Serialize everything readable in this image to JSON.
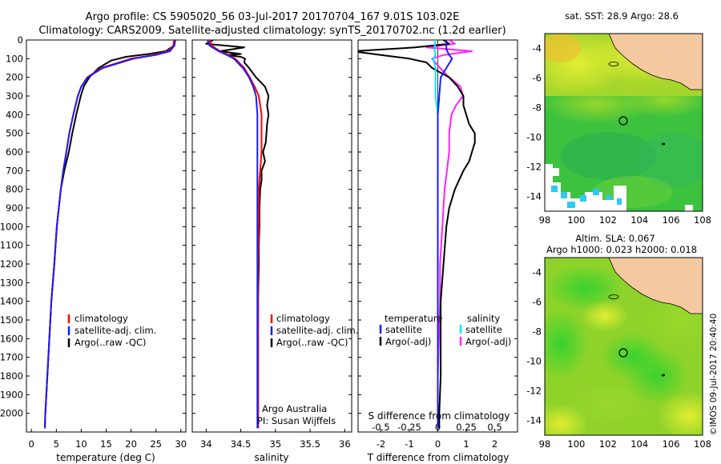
{
  "header": {
    "line1": "Argo profile: CS 5905020_56 03-Jul-2017 20170704_167 9.01S 103.02E",
    "line2": "Climatology: CARS2009. Satellite-adjusted climatology: synTS_20170702.nc (1.2d earlier)"
  },
  "colors": {
    "climatology": "#ff0000",
    "satellite": "#1a1aff",
    "argo": "#000000",
    "salinity_satellite": "#00e5ff",
    "salinity_argo": "#ff22ff",
    "land": "#f5c9a0"
  },
  "chart_data": [
    {
      "type": "line",
      "panel": "temperature",
      "xlabel": "temperature (deg C)",
      "xlim": [
        -1,
        31
      ],
      "ylim": [
        2100,
        0
      ],
      "xticks": [
        "0",
        "5",
        "10",
        "15",
        "20",
        "25",
        "30"
      ],
      "yticks": [
        "0",
        "100",
        "200",
        "300",
        "400",
        "500",
        "600",
        "700",
        "800",
        "900",
        "1000",
        "1100",
        "1200",
        "1300",
        "1400",
        "1500",
        "1600",
        "1700",
        "1800",
        "1900",
        "2000"
      ],
      "legend": [
        "climatology",
        "satellite-adj. clim.",
        "Argo(..raw -QC)"
      ],
      "series": [
        {
          "name": "climatology",
          "depth": [
            0,
            30,
            60,
            80,
            100,
            150,
            200,
            250,
            300,
            400,
            500,
            600,
            700,
            800,
            900,
            1000,
            1200,
            1400,
            1600,
            1800,
            2000,
            2080
          ],
          "values": [
            28.6,
            28.5,
            27.5,
            24.5,
            20.0,
            14.0,
            11.2,
            10.0,
            9.3,
            8.4,
            7.6,
            7.0,
            6.4,
            5.9,
            5.5,
            5.1,
            4.6,
            4.0,
            3.6,
            3.2,
            2.8,
            2.7
          ]
        },
        {
          "name": "satellite-adj. clim.",
          "depth": [
            0,
            30,
            60,
            80,
            100,
            150,
            200,
            250,
            300,
            400,
            500,
            600,
            700,
            800,
            900,
            1000,
            1200,
            1400,
            1600,
            1800,
            2000,
            2080
          ],
          "values": [
            28.9,
            28.7,
            27.8,
            25.0,
            20.5,
            14.3,
            11.3,
            10.0,
            9.3,
            8.4,
            7.6,
            7.0,
            6.4,
            5.9,
            5.5,
            5.1,
            4.6,
            4.0,
            3.6,
            3.2,
            2.8,
            2.7
          ]
        },
        {
          "name": "Argo(..raw -QC)",
          "depth": [
            0,
            30,
            60,
            75,
            90,
            110,
            150,
            200,
            250,
            300,
            400,
            500,
            600,
            700,
            800,
            900,
            1000,
            1200,
            1400,
            1600,
            1800,
            2000,
            2080
          ],
          "values": [
            28.7,
            28.6,
            27.0,
            23.5,
            19.0,
            16.0,
            13.5,
            11.6,
            10.5,
            9.9,
            9.0,
            8.2,
            7.5,
            6.6,
            5.9,
            5.5,
            5.1,
            4.6,
            4.0,
            3.6,
            3.2,
            2.8,
            2.7
          ]
        }
      ]
    },
    {
      "type": "line",
      "panel": "salinity",
      "xlabel": "salinity",
      "xlim": [
        33.8,
        36.1
      ],
      "ylim": [
        2100,
        0
      ],
      "xticks": [
        "34",
        "34.5",
        "35",
        "35.5",
        "36"
      ],
      "legend": [
        "climatology",
        "satellite-adj. clim.",
        "Argo(..raw -QC)"
      ],
      "annotation": [
        "Argo Australia",
        "PI: Susan Wijffels"
      ],
      "series": [
        {
          "name": "climatology",
          "depth": [
            0,
            30,
            60,
            80,
            100,
            150,
            200,
            250,
            300,
            400,
            500,
            600,
            800,
            1000,
            1200,
            1400,
            1600,
            1800,
            2000,
            2080
          ],
          "values": [
            34.05,
            34.08,
            34.2,
            34.32,
            34.42,
            34.55,
            34.63,
            34.7,
            34.76,
            34.8,
            34.8,
            34.8,
            34.76,
            34.76,
            34.75,
            34.75,
            34.75,
            34.75,
            34.75,
            34.75
          ]
        },
        {
          "name": "satellite-adj. clim.",
          "depth": [
            0,
            30,
            60,
            80,
            100,
            150,
            200,
            250,
            300,
            400,
            500,
            600,
            800,
            1000,
            1200,
            1400,
            1600,
            1800,
            2000,
            2080
          ],
          "values": [
            34.02,
            34.05,
            34.18,
            34.3,
            34.4,
            34.53,
            34.62,
            34.68,
            34.72,
            34.74,
            34.74,
            34.74,
            34.74,
            34.74,
            34.74,
            34.74,
            34.74,
            34.74,
            34.74,
            34.74
          ]
        },
        {
          "name": "Argo(..raw -QC)",
          "depth": [
            0,
            20,
            40,
            60,
            75,
            80,
            90,
            100,
            120,
            150,
            200,
            250,
            300,
            350,
            400,
            450,
            500,
            550,
            600,
            650,
            700,
            750,
            800,
            900,
            1000,
            1100,
            1200,
            1400,
            1600,
            1800,
            2000,
            2080
          ],
          "values": [
            34.1,
            34.0,
            34.55,
            34.2,
            34.5,
            34.3,
            34.5,
            34.56,
            34.55,
            34.62,
            34.72,
            34.85,
            34.9,
            34.88,
            34.9,
            34.88,
            34.87,
            34.86,
            34.82,
            34.85,
            34.8,
            34.8,
            34.78,
            34.77,
            34.77,
            34.76,
            34.76,
            34.75,
            34.75,
            34.75,
            34.75,
            34.75
          ]
        }
      ]
    },
    {
      "type": "line",
      "panel": "difference",
      "xlabel": "T difference from climatology",
      "xlabel2": "S difference from climatology",
      "xlim": [
        -2.8,
        2.8
      ],
      "ylim": [
        2100,
        0
      ],
      "xticks": [
        "-2",
        "-1",
        "0",
        "1",
        "2"
      ],
      "xticks2": [
        "-0.5",
        "-0.25",
        "0",
        "0.25",
        "0.5"
      ],
      "legend_temperature": [
        "temperature",
        "satellite",
        "Argo(-adj)"
      ],
      "legend_salinity": [
        "salinity",
        "satellite",
        "Argo(-adj)"
      ],
      "series": [
        {
          "name": "temperature satellite",
          "depth": [
            0,
            50,
            80,
            100,
            150,
            200,
            300,
            400,
            600,
            800,
            1000,
            1400,
            1800,
            2080
          ],
          "values": [
            0.3,
            0.3,
            0.4,
            0.5,
            0.3,
            0.1,
            0.05,
            0.0,
            0.0,
            0.0,
            0.0,
            0.0,
            0.0,
            0.0
          ]
        },
        {
          "name": "temperature Argo(-adj)",
          "depth": [
            0,
            20,
            40,
            60,
            80,
            100,
            120,
            150,
            200,
            250,
            300,
            350,
            400,
            450,
            500,
            550,
            600,
            650,
            700,
            800,
            900,
            1000,
            1200,
            1400,
            1600,
            1800,
            2000,
            2080
          ],
          "values": [
            0.2,
            0.4,
            -0.8,
            -3.0,
            -2.0,
            -1.0,
            -0.4,
            -0.2,
            0.4,
            0.7,
            0.9,
            0.9,
            1.0,
            1.1,
            1.3,
            1.3,
            1.2,
            1.1,
            0.9,
            0.6,
            0.4,
            0.3,
            0.2,
            0.1,
            0.1,
            0.1,
            0.05,
            0.05
          ]
        },
        {
          "name": "salinity satellite",
          "depth": [
            0,
            50,
            80,
            100,
            150,
            200,
            300,
            400,
            600,
            800,
            1000,
            1400,
            1800,
            2080
          ],
          "values": [
            -0.02,
            -0.03,
            -0.02,
            -0.04,
            -0.02,
            -0.02,
            -0.02,
            0.0,
            0.0,
            0.0,
            0.0,
            0.0,
            0.0,
            0.0
          ]
        },
        {
          "name": "salinity Argo(-adj)",
          "depth": [
            0,
            20,
            40,
            60,
            80,
            100,
            150,
            200,
            250,
            300,
            350,
            400,
            500,
            600,
            700,
            800,
            900,
            1000,
            1200,
            1400,
            1600,
            1800,
            2000
          ],
          "values": [
            0.1,
            0.15,
            -0.1,
            0.3,
            0.05,
            -0.05,
            0.02,
            0.1,
            0.2,
            0.22,
            0.16,
            0.12,
            0.1,
            0.1,
            0.08,
            0.06,
            0.05,
            0.04,
            0.02,
            0.02,
            0.01,
            0.0,
            0.0
          ]
        }
      ]
    },
    {
      "type": "heatmap",
      "panel": "sst-map",
      "title": "sat. SST: 28.9 Argo: 28.6",
      "xlim": [
        98,
        108
      ],
      "ylim": [
        -15,
        -3
      ],
      "xticks": [
        "98",
        "100",
        "102",
        "104",
        "106",
        "108"
      ],
      "yticks": [
        "-4",
        "-6",
        "-8",
        "-10",
        "-12",
        "-14"
      ],
      "argo_position": [
        103.02,
        -9.01
      ]
    },
    {
      "type": "heatmap",
      "panel": "sla-map",
      "title": "Altim. SLA: 0.067",
      "subtitle": "Argo h1000: 0.023 h2000: 0.018",
      "xlim": [
        98,
        108
      ],
      "ylim": [
        -15,
        -3
      ],
      "xticks": [
        "98",
        "100",
        "102",
        "104",
        "106",
        "108"
      ],
      "yticks": [
        "-4",
        "-6",
        "-8",
        "-10",
        "-12",
        "-14"
      ],
      "argo_position": [
        103.02,
        -9.01
      ]
    }
  ],
  "credit": "©IMOS 09-Jul-2017 20:40:40"
}
